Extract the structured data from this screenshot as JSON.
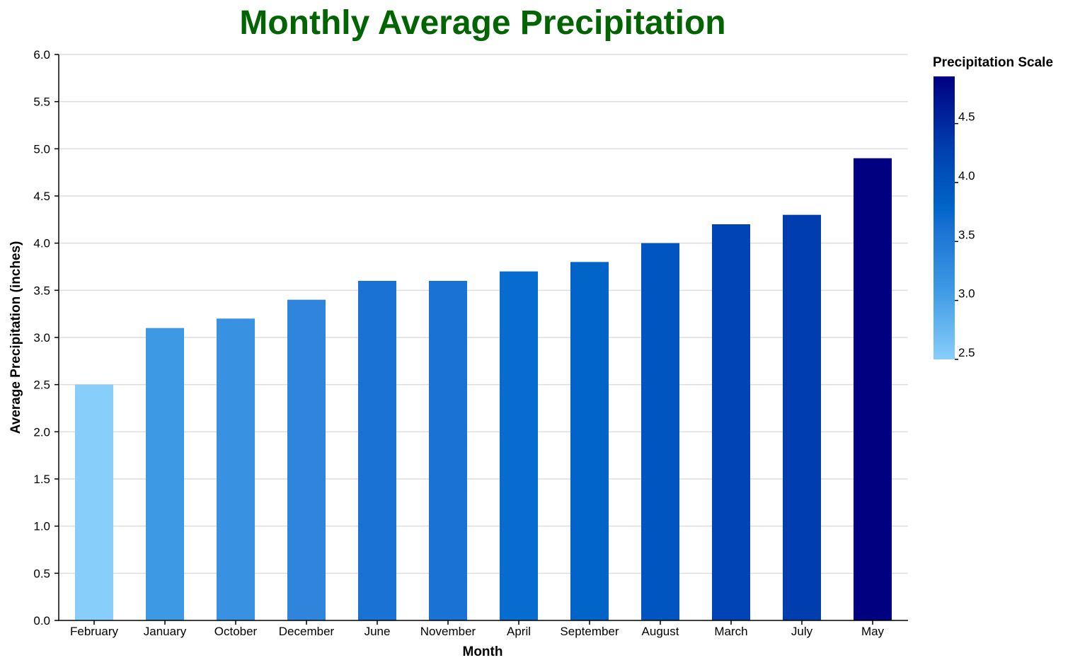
{
  "chart_data": {
    "type": "bar",
    "title": "Monthly Average Precipitation",
    "xlabel": "Month",
    "ylabel": "Average Precipitation (inches)",
    "categories": [
      "February",
      "January",
      "October",
      "December",
      "June",
      "November",
      "April",
      "September",
      "August",
      "March",
      "July",
      "May"
    ],
    "values": [
      2.5,
      3.1,
      3.2,
      3.4,
      3.6,
      3.6,
      3.7,
      3.8,
      4.0,
      4.2,
      4.3,
      4.9
    ],
    "ylim": [
      0,
      6.0
    ],
    "yticks": [
      "0.0",
      "0.5",
      "1.0",
      "1.5",
      "2.0",
      "2.5",
      "3.0",
      "3.5",
      "4.0",
      "4.5",
      "5.0",
      "5.5",
      "6.0"
    ],
    "grid": true,
    "colors": [
      "#87cefa",
      "#3d99e4",
      "#3991e1",
      "#2f84dc",
      "#1a73d4",
      "#1a73d4",
      "#066ccf",
      "#0064c9",
      "#0055c0",
      "#0044b5",
      "#003eb0",
      "#000080"
    ],
    "legend": {
      "title": "Precipitation Scale",
      "position": "right",
      "domain": [
        2.5,
        4.9
      ],
      "ticks": [
        "2.5",
        "3.0",
        "3.5",
        "4.0",
        "4.5"
      ],
      "gradient_stops": [
        {
          "value": 2.5,
          "color": "#87cefa"
        },
        {
          "value": 3.1,
          "color": "#3d99e4"
        },
        {
          "value": 3.6,
          "color": "#1a73d4"
        },
        {
          "value": 3.8,
          "color": "#0064c9"
        },
        {
          "value": 4.3,
          "color": "#003eb0"
        },
        {
          "value": 4.9,
          "color": "#000080"
        }
      ]
    }
  }
}
